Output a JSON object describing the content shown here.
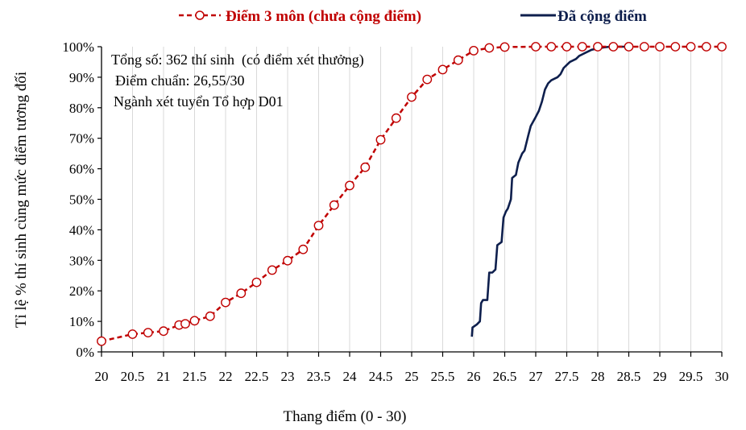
{
  "chart_data": {
    "type": "line",
    "xlabel": "Thang điểm (0 - 30)",
    "ylabel": "Tỉ lệ % thí sinh cùng mức điểm tương đối",
    "xlim": [
      20,
      30
    ],
    "ylim": [
      0,
      100
    ],
    "x_ticks": [
      "20",
      "20.5",
      "21",
      "21.5",
      "22",
      "22.5",
      "23",
      "23.5",
      "24",
      "24.5",
      "25",
      "25.5",
      "26",
      "26.5",
      "27",
      "27.5",
      "28",
      "28.5",
      "29",
      "29.5",
      "30"
    ],
    "y_ticks": [
      "0%",
      "10%",
      "20%",
      "30%",
      "40%",
      "50%",
      "60%",
      "70%",
      "80%",
      "90%",
      "100%"
    ],
    "grid": "vertical",
    "legend_position": "top",
    "annotations": [
      "Tổng số: 362 thí sinh  (có điểm xét thưởng)",
      "Điểm chuẩn: 26,55/30",
      "Ngành xét tuyển Tổ hợp D01"
    ],
    "series": [
      {
        "name": "Điểm 3 môn (chưa cộng điểm)",
        "color": "#c00000",
        "style": "dashed-markers",
        "x": [
          20,
          20.5,
          20.75,
          21,
          21.25,
          21.35,
          21.5,
          21.75,
          22,
          22.25,
          22.5,
          22.75,
          23,
          23.25,
          23.5,
          23.75,
          24,
          24.25,
          24.5,
          24.75,
          25,
          25.25,
          25.5,
          25.75,
          26,
          26.25,
          26.5,
          27,
          27.25,
          27.5,
          27.75,
          28,
          28.25,
          28.5,
          28.75,
          29,
          29.25,
          29.5,
          29.75,
          30
        ],
        "y": [
          3.5,
          5.8,
          6.3,
          6.8,
          8.8,
          9.2,
          10.2,
          11.7,
          16.2,
          19.2,
          22.8,
          26.8,
          29.9,
          33.6,
          41.4,
          48.1,
          54.5,
          60.5,
          69.5,
          76.6,
          83.5,
          89.3,
          92.5,
          95.6,
          98.7,
          99.6,
          99.9,
          100,
          100,
          100,
          100,
          100,
          100,
          100,
          100,
          100,
          100,
          100,
          100,
          100
        ]
      },
      {
        "name": "Đã cộng điểm",
        "color": "#0e1f4d",
        "style": "solid",
        "x": [
          25.97,
          25.98,
          26.05,
          26.1,
          26.12,
          26.15,
          26.22,
          26.25,
          26.3,
          26.35,
          26.38,
          26.45,
          26.48,
          26.52,
          26.55,
          26.6,
          26.62,
          26.68,
          26.72,
          26.78,
          26.82,
          26.88,
          26.92,
          27.0,
          27.05,
          27.1,
          27.15,
          27.2,
          27.25,
          27.3,
          27.35,
          27.4,
          27.45,
          27.5,
          27.55,
          27.6,
          27.65,
          27.7,
          27.75,
          27.8,
          27.85,
          27.9,
          27.95,
          28.0,
          28.05,
          28.1,
          28.2,
          28.3,
          28.5
        ],
        "y": [
          5,
          8,
          9,
          10,
          16,
          17,
          17,
          26,
          26,
          27,
          35,
          36,
          44,
          46,
          47,
          50,
          57,
          58,
          62,
          65,
          66,
          71,
          74,
          77,
          79,
          82,
          86,
          88,
          89,
          89.5,
          90,
          91,
          93,
          94,
          95,
          95.5,
          96,
          97,
          97.5,
          98,
          98.5,
          99,
          99.2,
          99.4,
          99.6,
          99.8,
          100,
          100,
          100
        ]
      }
    ]
  }
}
